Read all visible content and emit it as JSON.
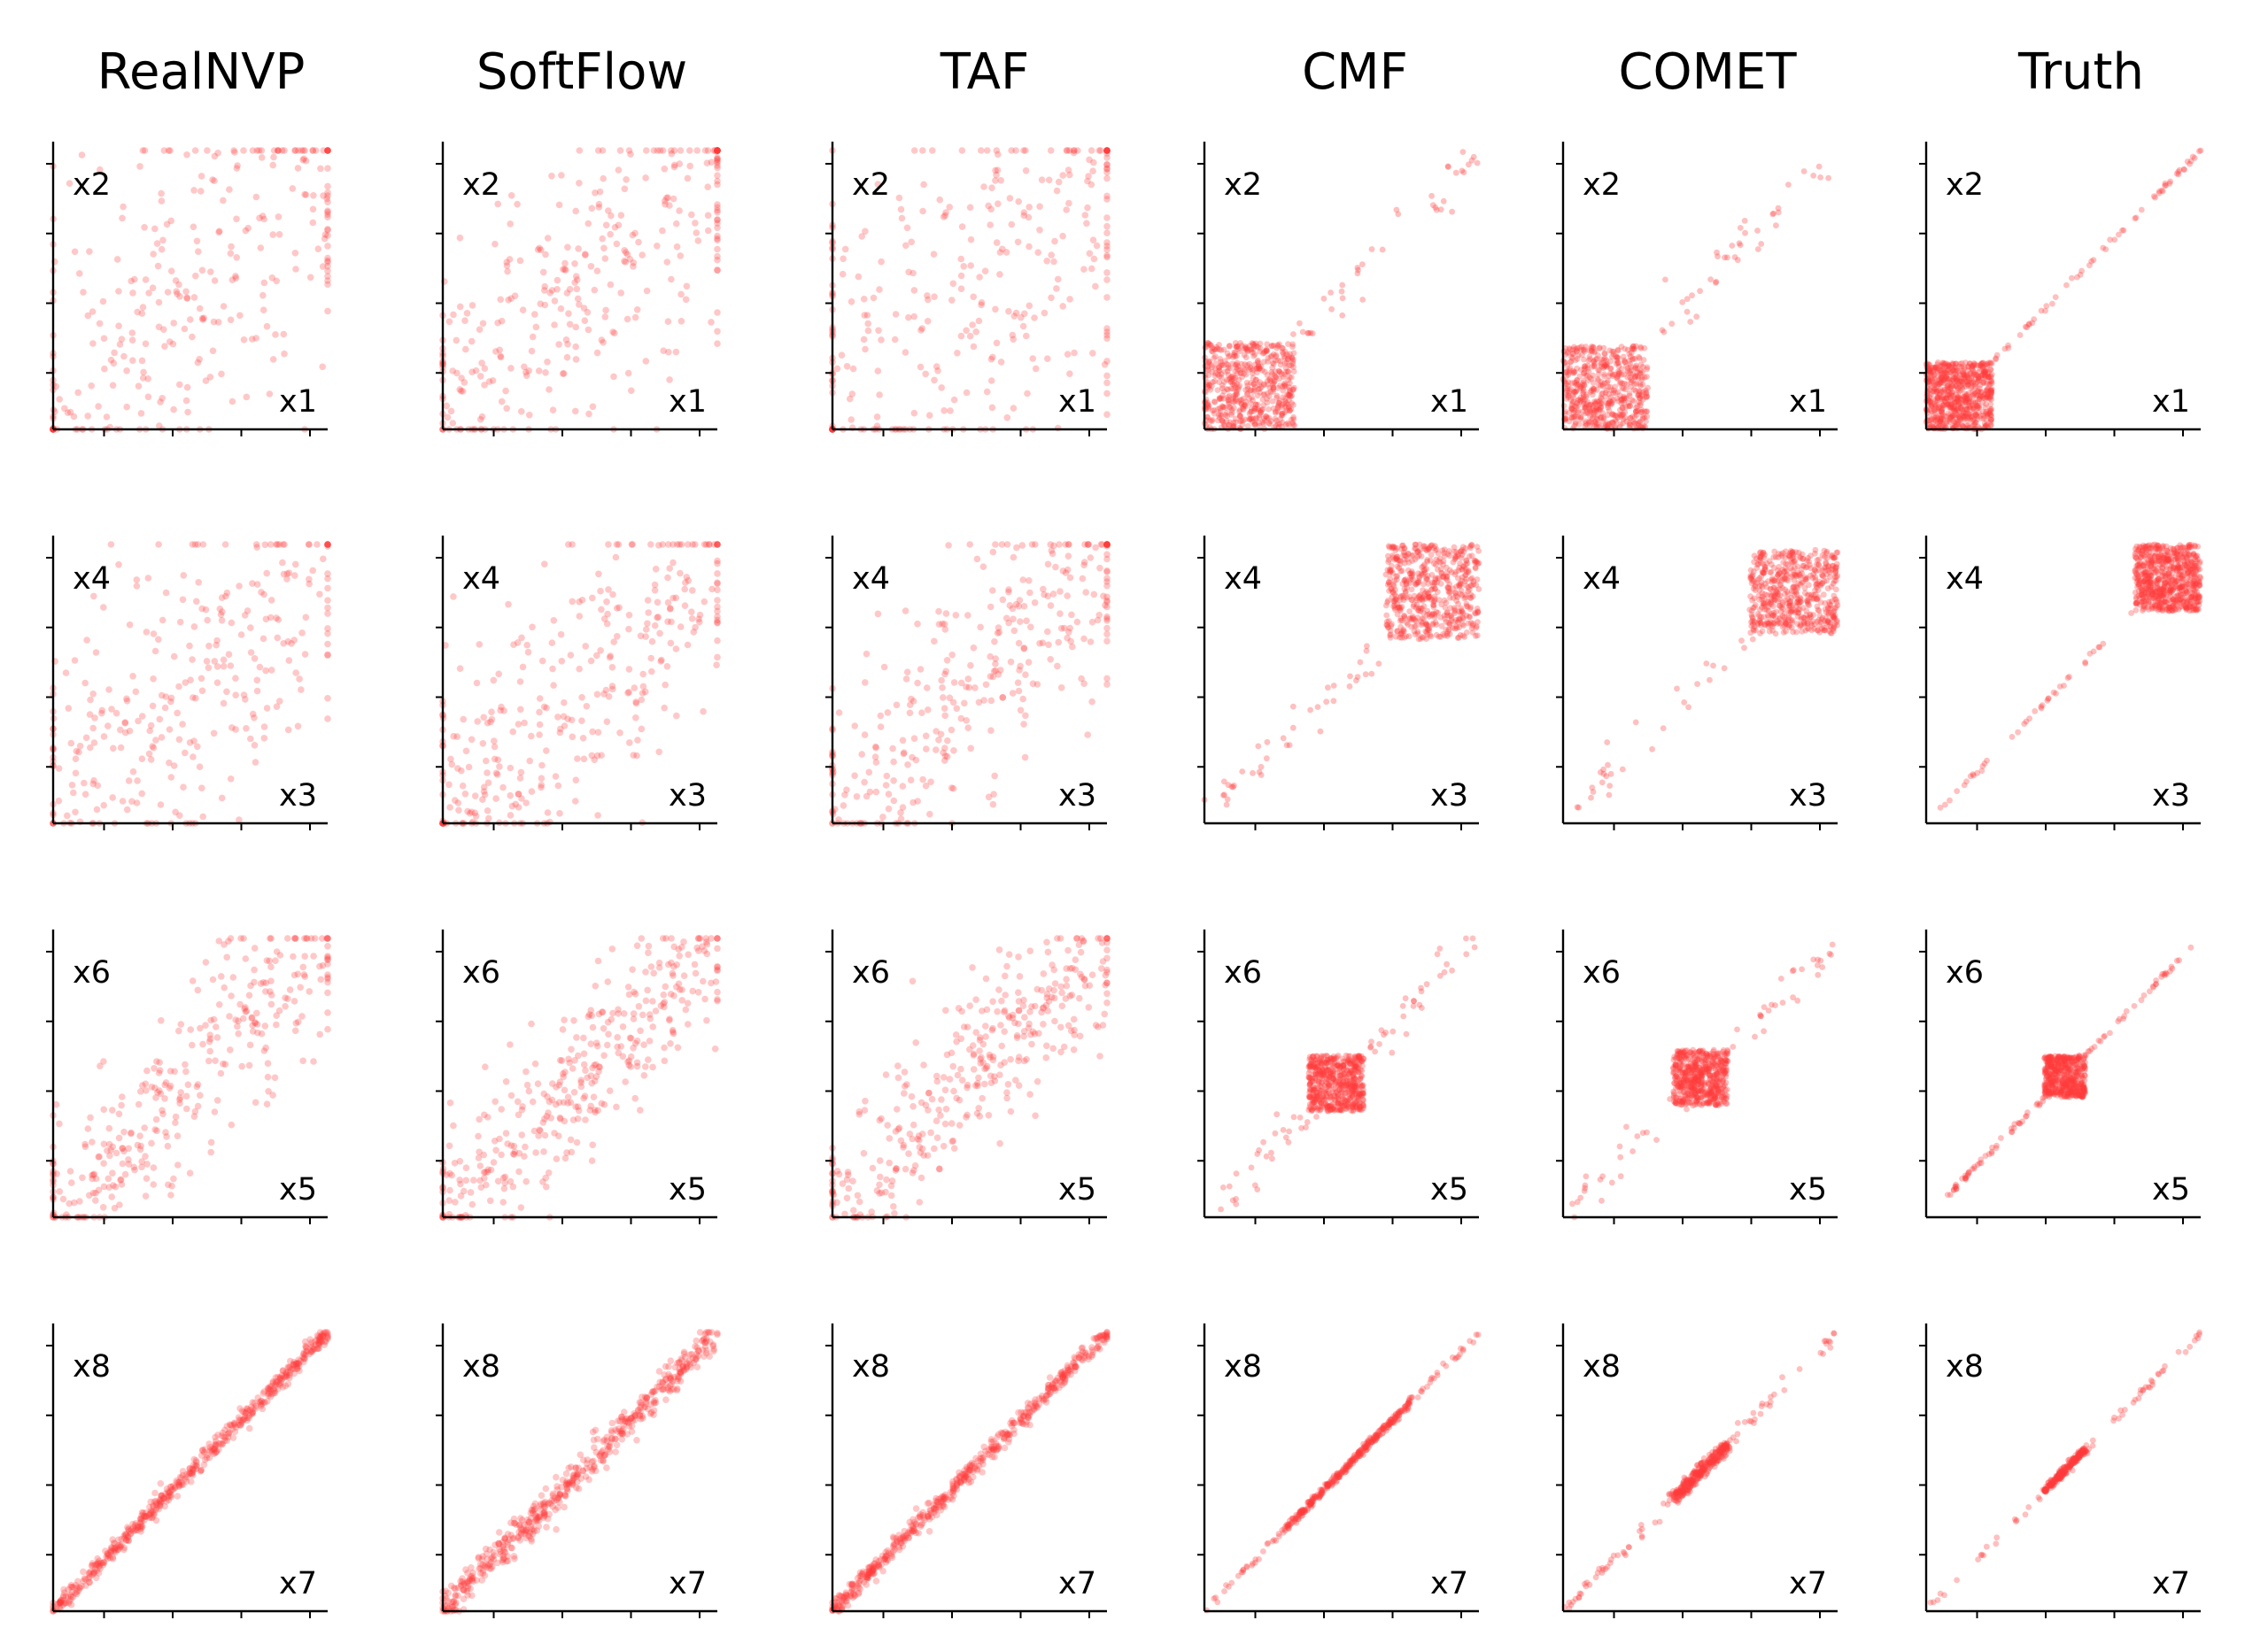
{
  "chart_data": {
    "type": "scatter",
    "title": "",
    "colors": {
      "points": "#ff3b3b",
      "axes": "#000000"
    },
    "columns": [
      "RealNVP",
      "SoftFlow",
      "TAF",
      "CMF",
      "COMET",
      "Truth"
    ],
    "rows": [
      {
        "xlabel": "x1",
        "ylabel": "x2"
      },
      {
        "xlabel": "x3",
        "ylabel": "x4"
      },
      {
        "xlabel": "x5",
        "ylabel": "x6"
      },
      {
        "xlabel": "x7",
        "ylabel": "x8"
      }
    ],
    "xlim": [
      0,
      1
    ],
    "ylim": [
      0,
      1
    ],
    "grid": false,
    "panels": [
      [
        {
          "method": "RealNVP",
          "pattern": "diffuse",
          "spread": 0.25,
          "n": 300
        },
        {
          "method": "SoftFlow",
          "pattern": "diffuse",
          "spread": 0.2,
          "n": 330
        },
        {
          "method": "TAF",
          "pattern": "diffuse",
          "spread": 0.3,
          "n": 320
        },
        {
          "method": "CMF",
          "pattern": "block_diag",
          "block": [
            0,
            0.33,
            0,
            0.31
          ],
          "n_block": 560,
          "n_tail": 40
        },
        {
          "method": "COMET",
          "pattern": "block_diag",
          "block": [
            0,
            0.31,
            0,
            0.3
          ],
          "n_block": 560,
          "n_tail": 40
        },
        {
          "method": "Truth",
          "pattern": "block_diag",
          "block": [
            0,
            0.24,
            0,
            0.24
          ],
          "n_block": 700,
          "n_tail": 60
        }
      ],
      [
        {
          "method": "RealNVP",
          "pattern": "diffuse",
          "spread": 0.2,
          "n": 300
        },
        {
          "method": "SoftFlow",
          "pattern": "diffuse",
          "spread": 0.17,
          "n": 330
        },
        {
          "method": "TAF",
          "pattern": "diffuse",
          "spread": 0.16,
          "n": 330
        },
        {
          "method": "CMF",
          "pattern": "block_diag",
          "block": [
            0.66,
            1,
            0.66,
            1
          ],
          "n_block": 560,
          "n_tail": 40
        },
        {
          "method": "COMET",
          "pattern": "block_diag",
          "block": [
            0.68,
            1,
            0.68,
            0.98
          ],
          "n_block": 560,
          "n_tail": 30
        },
        {
          "method": "Truth",
          "pattern": "block_diag",
          "block": [
            0.76,
            1,
            0.76,
            1
          ],
          "n_block": 700,
          "n_tail": 40
        }
      ],
      [
        {
          "method": "RealNVP",
          "pattern": "diffuse",
          "spread": 0.12,
          "n": 330
        },
        {
          "method": "SoftFlow",
          "pattern": "diffuse",
          "spread": 0.1,
          "n": 360
        },
        {
          "method": "TAF",
          "pattern": "diffuse",
          "spread": 0.1,
          "n": 360
        },
        {
          "method": "CMF",
          "pattern": "block_diag",
          "block": [
            0.38,
            0.58,
            0.38,
            0.58
          ],
          "n_block": 560,
          "n_tail": 60
        },
        {
          "method": "COMET",
          "pattern": "block_diag",
          "block": [
            0.4,
            0.6,
            0.4,
            0.6
          ],
          "n_block": 560,
          "n_tail": 50
        },
        {
          "method": "Truth",
          "pattern": "block_diag",
          "block": [
            0.43,
            0.58,
            0.43,
            0.58
          ],
          "n_block": 500,
          "n_tail": 90
        }
      ],
      [
        {
          "method": "RealNVP",
          "pattern": "diagonal",
          "spread": 0.012,
          "n": 520
        },
        {
          "method": "SoftFlow",
          "pattern": "diagonal",
          "spread": 0.022,
          "n": 520
        },
        {
          "method": "TAF",
          "pattern": "diagonal",
          "spread": 0.012,
          "n": 520
        },
        {
          "method": "CMF",
          "pattern": "diagonal_core",
          "spread": 0.004,
          "core": [
            0.3,
            0.75
          ],
          "n": 400
        },
        {
          "method": "COMET",
          "pattern": "diagonal_core",
          "spread": 0.008,
          "core": [
            0.4,
            0.6
          ],
          "n": 380
        },
        {
          "method": "Truth",
          "pattern": "diagonal_core",
          "spread": 0.004,
          "core": [
            0.43,
            0.58
          ],
          "n": 300
        }
      ]
    ]
  }
}
